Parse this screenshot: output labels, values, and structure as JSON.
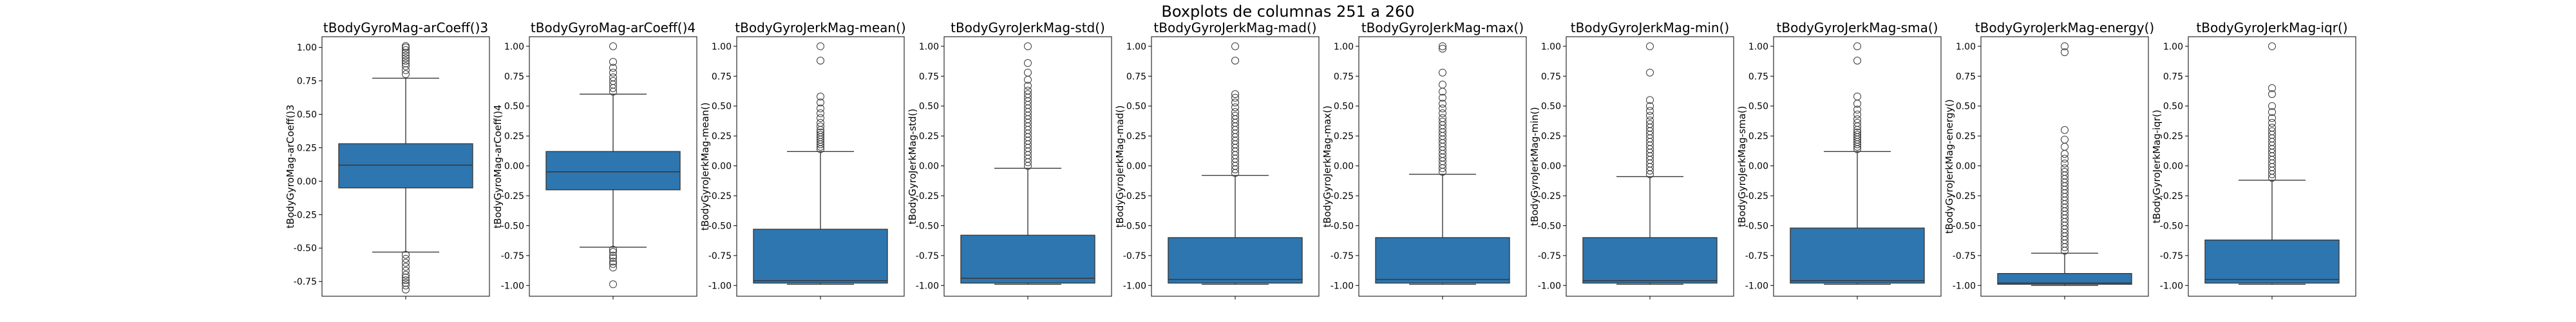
{
  "figure": {
    "suptitle": "Boxplots de columnas 251 a 260"
  },
  "colors": {
    "box_fill": "#2d76b0",
    "line": "#3a3a3a",
    "outlier": "#3a3a3a",
    "background": "#ffffff"
  },
  "chart_data": [
    {
      "type": "boxplot",
      "title": "tBodyGyroMag-arCoeff()3",
      "ylabel": "tBodyGyroMag-arCoeff()3",
      "ylim": [
        -0.86,
        1.08
      ],
      "yticks": [
        "-0.75",
        "-0.50",
        "-0.25",
        "0.00",
        "0.25",
        "0.50",
        "0.75",
        "1.00"
      ],
      "ytick_values": [
        -0.75,
        -0.5,
        -0.25,
        0.0,
        0.25,
        0.5,
        0.75,
        1.0
      ],
      "stats": {
        "q1": -0.05,
        "median": 0.12,
        "q3": 0.28,
        "whislo": -0.53,
        "whishi": 0.77
      },
      "outliers": [
        0.8,
        0.83,
        0.86,
        0.88,
        0.9,
        0.92,
        0.94,
        0.96,
        0.98,
        1.0,
        1.01,
        -0.55,
        -0.58,
        -0.61,
        -0.64,
        -0.67,
        -0.7,
        -0.72,
        -0.74,
        -0.76,
        -0.78,
        -0.81
      ]
    },
    {
      "type": "boxplot",
      "title": "tBodyGyroMag-arCoeff()4",
      "ylabel": "tBodyGyroMag-arCoeff()4",
      "ylim": [
        -1.09,
        1.08
      ],
      "yticks": [
        "-1.00",
        "-0.75",
        "-0.50",
        "-0.25",
        "0.00",
        "0.25",
        "0.50",
        "0.75",
        "1.00"
      ],
      "ytick_values": [
        -1.0,
        -0.75,
        -0.5,
        -0.25,
        0.0,
        0.25,
        0.5,
        0.75,
        1.0
      ],
      "stats": {
        "q1": -0.2,
        "median": -0.05,
        "q3": 0.12,
        "whislo": -0.68,
        "whishi": 0.6
      },
      "outliers": [
        0.62,
        0.65,
        0.68,
        0.71,
        0.74,
        0.78,
        0.82,
        0.87,
        1.0,
        -0.7,
        -0.72,
        -0.75,
        -0.77,
        -0.8,
        -0.82,
        -0.85,
        -0.99
      ]
    },
    {
      "type": "boxplot",
      "title": "tBodyGyroJerkMag-mean()",
      "ylabel": "tBodyGyroJerkMag-mean()",
      "ylim": [
        -1.09,
        1.08
      ],
      "yticks": [
        "-1.00",
        "-0.75",
        "-0.50",
        "-0.25",
        "0.00",
        "0.25",
        "0.50",
        "0.75",
        "1.00"
      ],
      "ytick_values": [
        -1.0,
        -0.75,
        -0.5,
        -0.25,
        0.0,
        0.25,
        0.5,
        0.75,
        1.0
      ],
      "stats": {
        "q1": -0.98,
        "median": -0.96,
        "q3": -0.53,
        "whislo": -0.99,
        "whishi": 0.12
      },
      "outliers": [
        0.14,
        0.16,
        0.18,
        0.2,
        0.22,
        0.24,
        0.26,
        0.28,
        0.3,
        0.33,
        0.36,
        0.4,
        0.44,
        0.48,
        0.53,
        0.58,
        0.88,
        1.0
      ]
    },
    {
      "type": "boxplot",
      "title": "tBodyGyroJerkMag-std()",
      "ylabel": "tBodyGyroJerkMag-std()",
      "ylim": [
        -1.09,
        1.08
      ],
      "yticks": [
        "-1.00",
        "-0.75",
        "-0.50",
        "-0.25",
        "0.00",
        "0.25",
        "0.50",
        "0.75",
        "1.00"
      ],
      "ytick_values": [
        -1.0,
        -0.75,
        -0.5,
        -0.25,
        0.0,
        0.25,
        0.5,
        0.75,
        1.0
      ],
      "stats": {
        "q1": -0.98,
        "median": -0.94,
        "q3": -0.58,
        "whislo": -0.99,
        "whishi": -0.02
      },
      "outliers": [
        0.0,
        0.03,
        0.06,
        0.09,
        0.12,
        0.15,
        0.18,
        0.21,
        0.24,
        0.27,
        0.3,
        0.33,
        0.36,
        0.39,
        0.42,
        0.45,
        0.48,
        0.51,
        0.54,
        0.57,
        0.6,
        0.63,
        0.67,
        0.72,
        0.78,
        0.86,
        1.0
      ]
    },
    {
      "type": "boxplot",
      "title": "tBodyGyroJerkMag-mad()",
      "ylabel": "tBodyGyroJerkMag-mad()",
      "ylim": [
        -1.09,
        1.08
      ],
      "yticks": [
        "-1.00",
        "-0.75",
        "-0.50",
        "-0.25",
        "0.00",
        "0.25",
        "0.50",
        "0.75",
        "1.00"
      ],
      "ytick_values": [
        -1.0,
        -0.75,
        -0.5,
        -0.25,
        0.0,
        0.25,
        0.5,
        0.75,
        1.0
      ],
      "stats": {
        "q1": -0.98,
        "median": -0.95,
        "q3": -0.6,
        "whislo": -0.99,
        "whishi": -0.08
      },
      "outliers": [
        -0.06,
        -0.03,
        0.0,
        0.03,
        0.06,
        0.09,
        0.12,
        0.15,
        0.18,
        0.21,
        0.24,
        0.27,
        0.3,
        0.33,
        0.36,
        0.39,
        0.42,
        0.45,
        0.49,
        0.53,
        0.57,
        0.6,
        0.88,
        1.0
      ]
    },
    {
      "type": "boxplot",
      "title": "tBodyGyroJerkMag-max()",
      "ylabel": "tBodyGyroJerkMag-max()",
      "ylim": [
        -1.09,
        1.08
      ],
      "yticks": [
        "-1.00",
        "-0.75",
        "-0.50",
        "-0.25",
        "0.00",
        "0.25",
        "0.50",
        "0.75",
        "1.00"
      ],
      "ytick_values": [
        -1.0,
        -0.75,
        -0.5,
        -0.25,
        0.0,
        0.25,
        0.5,
        0.75,
        1.0
      ],
      "stats": {
        "q1": -0.98,
        "median": -0.95,
        "q3": -0.6,
        "whislo": -0.99,
        "whishi": -0.07
      },
      "outliers": [
        -0.05,
        -0.02,
        0.01,
        0.04,
        0.07,
        0.1,
        0.13,
        0.16,
        0.19,
        0.22,
        0.25,
        0.28,
        0.31,
        0.34,
        0.37,
        0.4,
        0.44,
        0.48,
        0.52,
        0.57,
        0.62,
        0.68,
        0.78,
        0.98,
        1.0
      ]
    },
    {
      "type": "boxplot",
      "title": "tBodyGyroJerkMag-min()",
      "ylabel": "tBodyGyroJerkMag-min()",
      "ylim": [
        -1.09,
        1.08
      ],
      "yticks": [
        "-1.00",
        "-0.75",
        "-0.50",
        "-0.25",
        "0.00",
        "0.25",
        "0.50",
        "0.75",
        "1.00"
      ],
      "ytick_values": [
        -1.0,
        -0.75,
        -0.5,
        -0.25,
        0.0,
        0.25,
        0.5,
        0.75,
        1.0
      ],
      "stats": {
        "q1": -0.98,
        "median": -0.96,
        "q3": -0.6,
        "whislo": -0.99,
        "whishi": -0.09
      },
      "outliers": [
        -0.07,
        -0.04,
        -0.01,
        0.02,
        0.05,
        0.08,
        0.11,
        0.14,
        0.17,
        0.2,
        0.23,
        0.26,
        0.29,
        0.32,
        0.35,
        0.38,
        0.42,
        0.46,
        0.5,
        0.55,
        0.78,
        1.0
      ]
    },
    {
      "type": "boxplot",
      "title": "tBodyGyroJerkMag-sma()",
      "ylabel": "tBodyGyroJerkMag-sma()",
      "ylim": [
        -1.09,
        1.08
      ],
      "yticks": [
        "-1.00",
        "-0.75",
        "-0.50",
        "-0.25",
        "0.00",
        "0.25",
        "0.50",
        "0.75",
        "1.00"
      ],
      "ytick_values": [
        -1.0,
        -0.75,
        -0.5,
        -0.25,
        0.0,
        0.25,
        0.5,
        0.75,
        1.0
      ],
      "stats": {
        "q1": -0.98,
        "median": -0.96,
        "q3": -0.52,
        "whislo": -0.99,
        "whishi": 0.12
      },
      "outliers": [
        0.14,
        0.16,
        0.18,
        0.2,
        0.22,
        0.24,
        0.26,
        0.28,
        0.3,
        0.33,
        0.36,
        0.39,
        0.43,
        0.47,
        0.52,
        0.58,
        0.88,
        1.0
      ]
    },
    {
      "type": "boxplot",
      "title": "tBodyGyroJerkMag-energy()",
      "ylabel": "tBodyGyroJerkMag-energy()",
      "ylim": [
        -1.09,
        1.08
      ],
      "yticks": [
        "-1.00",
        "-0.75",
        "-0.50",
        "-0.25",
        "0.00",
        "0.25",
        "0.50",
        "0.75",
        "1.00"
      ],
      "ytick_values": [
        -1.0,
        -0.75,
        -0.5,
        -0.25,
        0.0,
        0.25,
        0.5,
        0.75,
        1.0
      ],
      "stats": {
        "q1": -0.99,
        "median": -0.98,
        "q3": -0.9,
        "whislo": -1.0,
        "whishi": -0.73
      },
      "outliers": [
        -0.71,
        -0.68,
        -0.65,
        -0.62,
        -0.59,
        -0.56,
        -0.53,
        -0.5,
        -0.47,
        -0.44,
        -0.41,
        -0.38,
        -0.35,
        -0.32,
        -0.29,
        -0.26,
        -0.23,
        -0.2,
        -0.17,
        -0.14,
        -0.11,
        -0.08,
        -0.05,
        -0.02,
        0.02,
        0.06,
        0.1,
        0.16,
        0.22,
        0.3,
        0.95,
        1.0
      ]
    },
    {
      "type": "boxplot",
      "title": "tBodyGyroJerkMag-iqr()",
      "ylabel": "tBodyGyroJerkMag-iqr()",
      "ylim": [
        -1.09,
        1.08
      ],
      "yticks": [
        "-1.00",
        "-0.75",
        "-0.50",
        "-0.25",
        "0.00",
        "0.25",
        "0.50",
        "0.75",
        "1.00"
      ],
      "ytick_values": [
        -1.0,
        -0.75,
        -0.5,
        -0.25,
        0.0,
        0.25,
        0.5,
        0.75,
        1.0
      ],
      "stats": {
        "q1": -0.98,
        "median": -0.95,
        "q3": -0.62,
        "whislo": -0.99,
        "whishi": -0.12
      },
      "outliers": [
        -0.1,
        -0.07,
        -0.04,
        -0.01,
        0.02,
        0.05,
        0.08,
        0.11,
        0.14,
        0.17,
        0.2,
        0.23,
        0.26,
        0.29,
        0.32,
        0.36,
        0.4,
        0.45,
        0.5,
        0.6,
        0.65,
        1.0
      ]
    }
  ]
}
